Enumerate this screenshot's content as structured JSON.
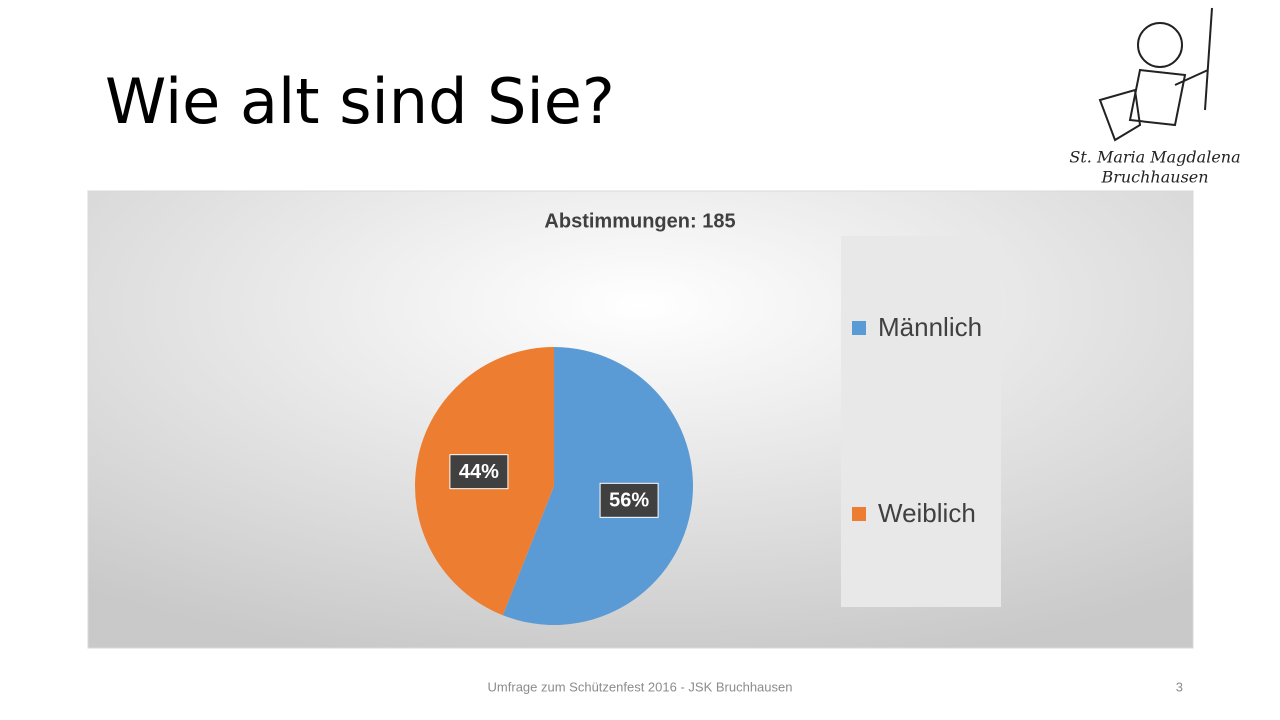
{
  "slide_title": "Wie alt sind Sie?",
  "logo": {
    "line1": "St. Maria Magdalena",
    "line2": "Bruchhausen"
  },
  "footer": "Umfrage zum Schützenfest 2016 - JSK Bruchhausen",
  "page_number": "3",
  "chart_data": {
    "type": "pie",
    "title": "Abstimmungen: 185",
    "categories": [
      "Männlich",
      "Weiblich"
    ],
    "values": [
      56,
      44
    ],
    "value_labels": [
      "56%",
      "44%"
    ],
    "colors": [
      "#5b9bd5",
      "#ed7d31"
    ],
    "legend": "right"
  }
}
